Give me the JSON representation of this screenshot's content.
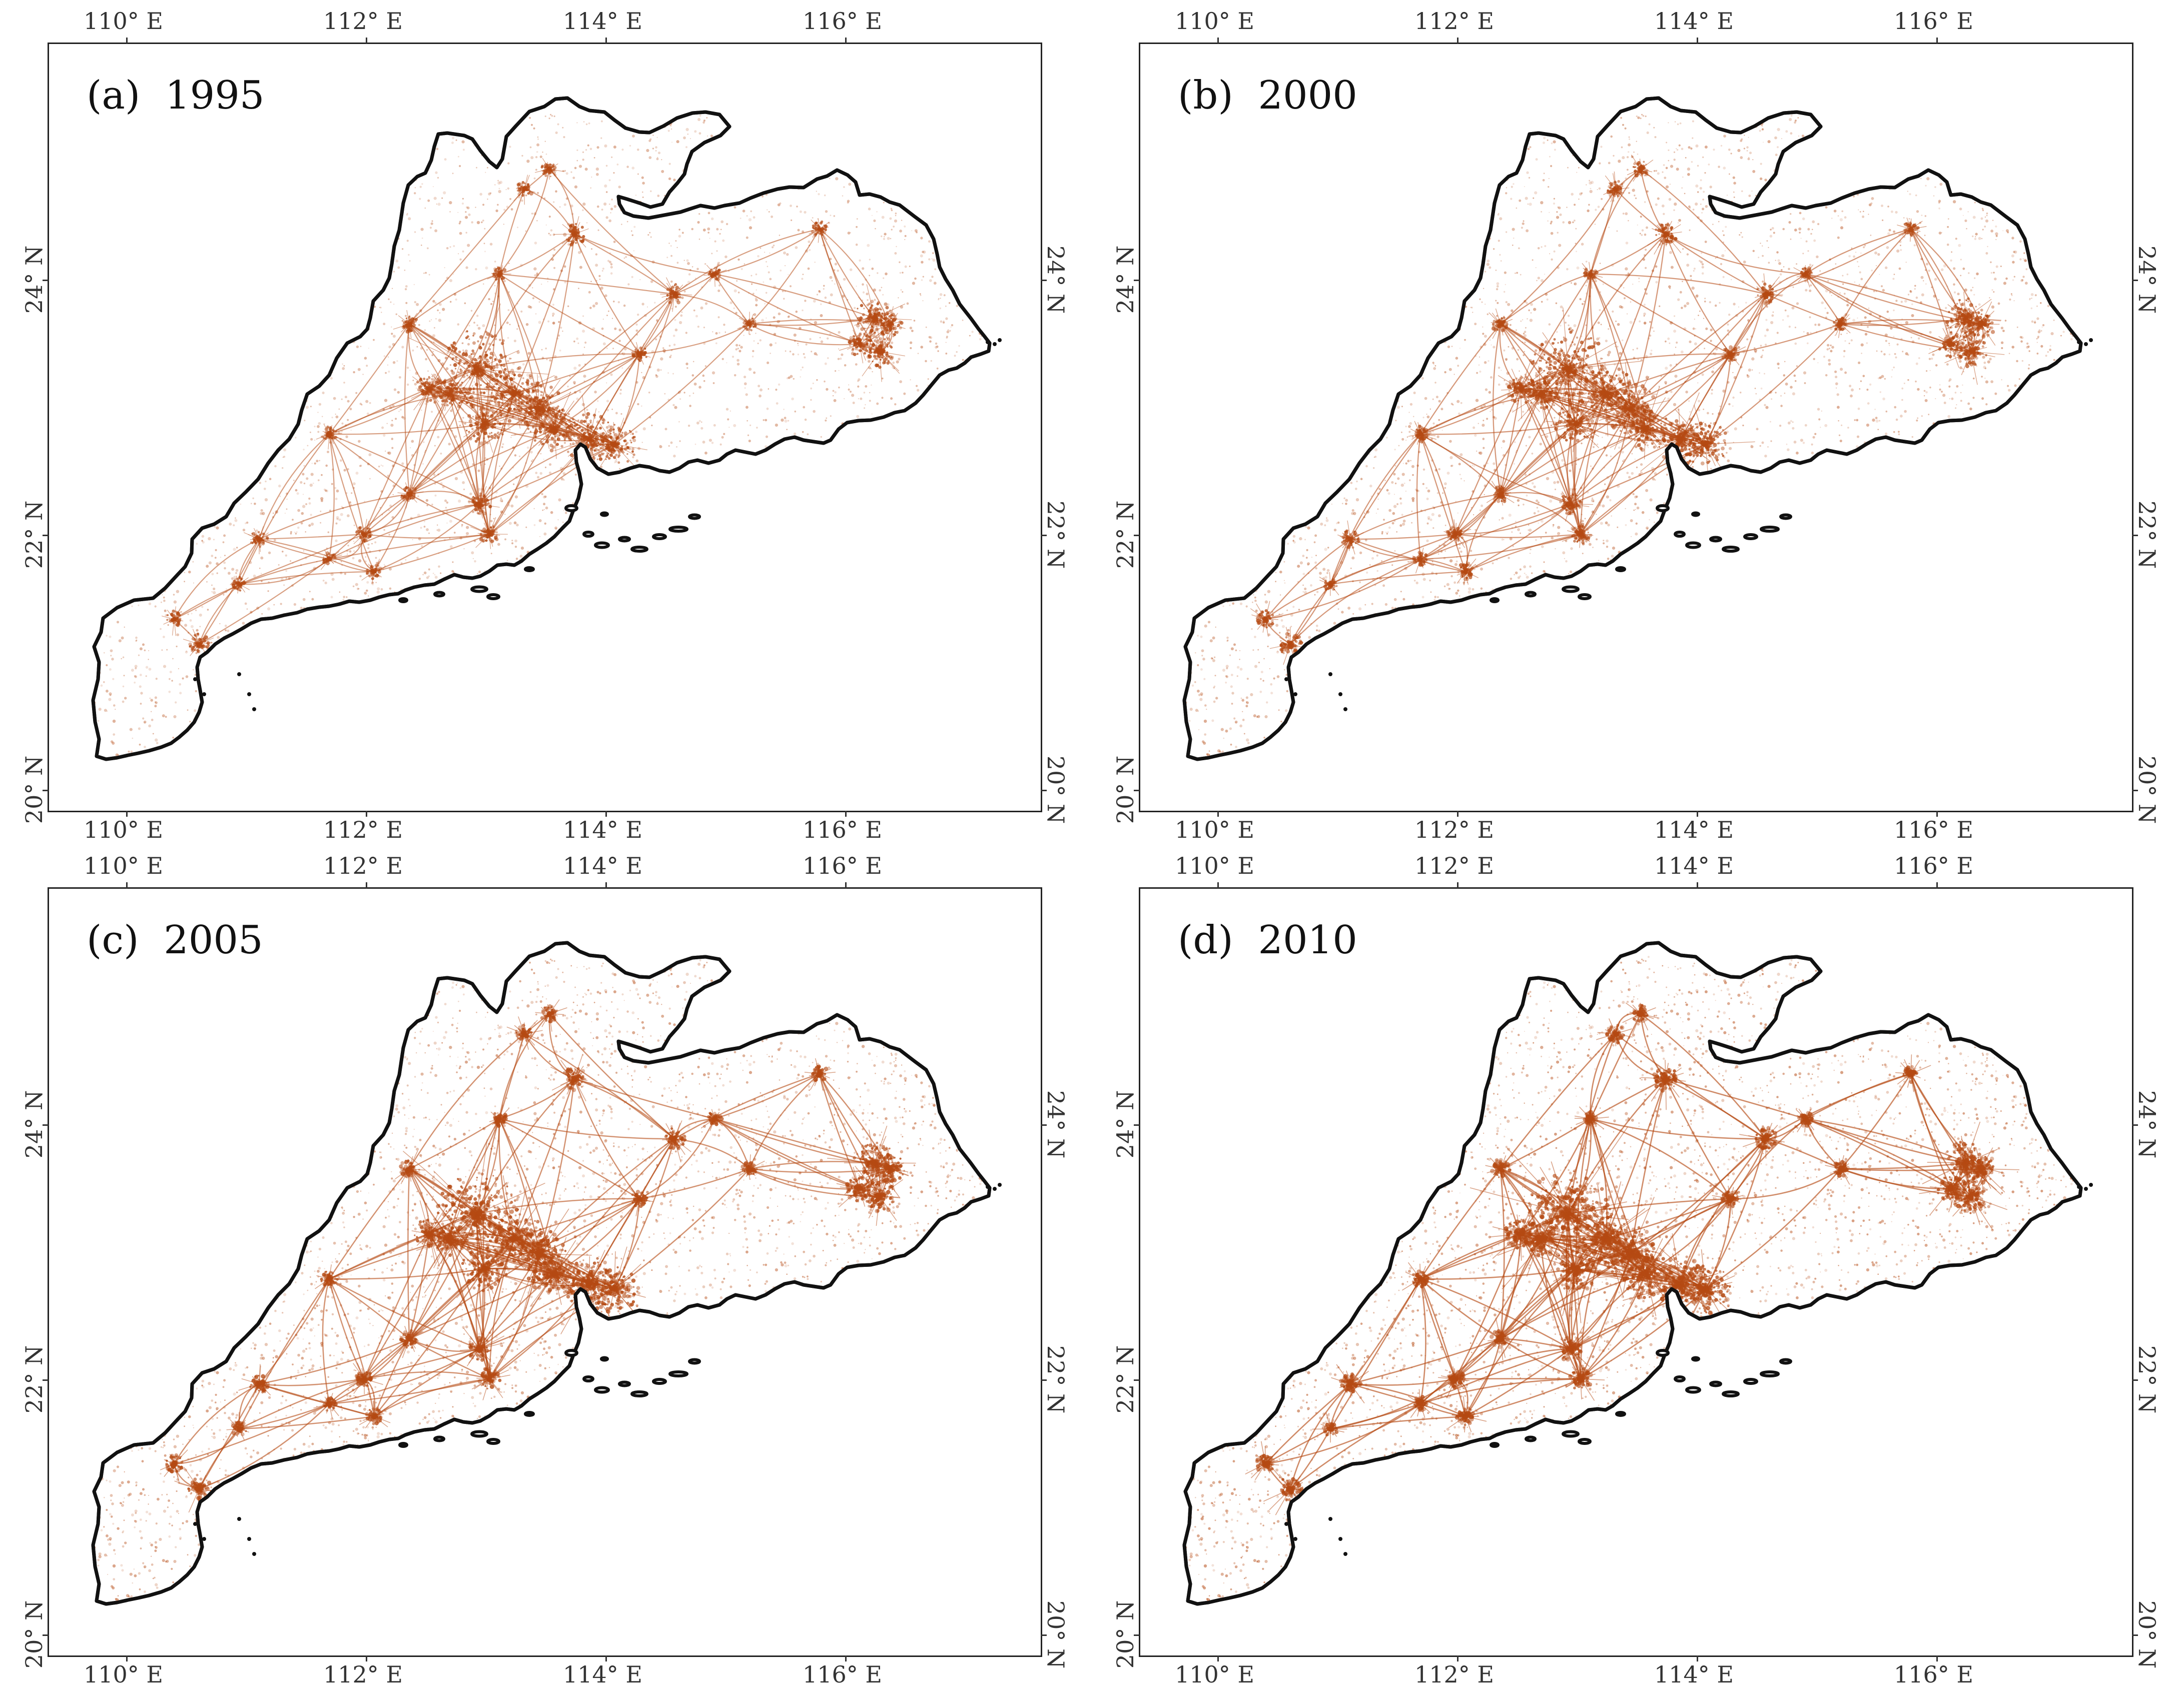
{
  "figure": {
    "panels": [
      {
        "id": "a",
        "label": "(a)  1995",
        "intensity": 0.8
      },
      {
        "id": "b",
        "label": "(b)  2000",
        "intensity": 0.88
      },
      {
        "id": "c",
        "label": "(c)  2005",
        "intensity": 1.0
      },
      {
        "id": "d",
        "label": "(d)  2010",
        "intensity": 1.1
      }
    ],
    "lon_ticks": [
      "110° E",
      "112° E",
      "114° E",
      "116° E"
    ],
    "lat_ticks": [
      "24° N",
      "22° N",
      "20° N"
    ],
    "colors": {
      "urban": "#b54a13",
      "boundary": "#111111",
      "frame": "#222222"
    }
  }
}
